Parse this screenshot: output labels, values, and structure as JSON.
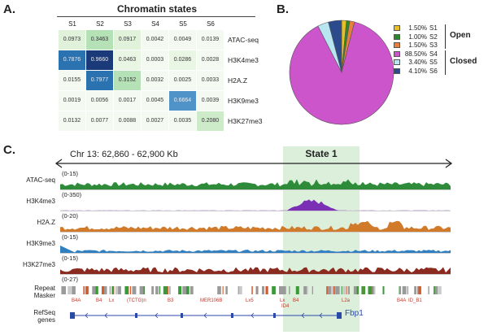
{
  "panel_a": {
    "letter": "A.",
    "title": "Chromatin states",
    "columns": [
      "S1",
      "S2",
      "S3",
      "S4",
      "S5",
      "S6"
    ],
    "rows": [
      {
        "label": "ATAC-seq",
        "values": [
          "0.0973",
          "0.3463",
          "0.0917",
          "0.0042",
          "0.0049",
          "0.0139"
        ]
      },
      {
        "label": "H3K4me3",
        "values": [
          "0.7876",
          "0.9660",
          "0.0463",
          "0.0003",
          "0.0286",
          "0.0028"
        ]
      },
      {
        "label": "H2A.Z",
        "values": [
          "0.0155",
          "0.7977",
          "0.3152",
          "0.0032",
          "0.0025",
          "0.0033"
        ]
      },
      {
        "label": "H3K9me3",
        "values": [
          "0.0019",
          "0.0056",
          "0.0017",
          "0.0045",
          "0.6664",
          "0.0039"
        ]
      },
      {
        "label": "H3K27me3",
        "values": [
          "0.0132",
          "0.0077",
          "0.0088",
          "0.0027",
          "0.0035",
          "0.2080"
        ]
      }
    ]
  },
  "panel_b": {
    "letter": "B.",
    "slices": [
      {
        "pct": "1.50%",
        "state": "S1",
        "value": 1.5,
        "color": "#e8c020"
      },
      {
        "pct": "1.00%",
        "state": "S2",
        "value": 1.0,
        "color": "#2a8a2a"
      },
      {
        "pct": "1.50%",
        "state": "S3",
        "value": 1.5,
        "color": "#e8803c"
      },
      {
        "pct": "88.50%",
        "state": "S4",
        "value": 88.5,
        "color": "#cc55cc"
      },
      {
        "pct": "3.40%",
        "state": "S5",
        "value": 3.4,
        "color": "#b8e6f0"
      },
      {
        "pct": "4.10%",
        "state": "S6",
        "value": 4.1,
        "color": "#2c4b8c"
      }
    ],
    "group_open": "Open",
    "group_closed": "Closed"
  },
  "panel_c": {
    "letter": "C.",
    "locus": "Chr 13: 62,860 - 62,900 Kb",
    "state_label": "State 1",
    "tracks": [
      {
        "name": "ATAC-seq",
        "range": "(0-15)",
        "color": "#2e8b3a"
      },
      {
        "name": "H3K4me3",
        "range": "(0-350)",
        "color": "#7b2fb5"
      },
      {
        "name": "H2A.Z",
        "range": "(0-20)",
        "color": "#d07a2a"
      },
      {
        "name": "H3K9me3",
        "range": "(0-15)",
        "color": "#2f7fc1"
      },
      {
        "name": "H3K27me3",
        "range": "(0-15)",
        "color": "#8b2a1e"
      }
    ],
    "repeat_range": "(0-27)",
    "repeat_label_1": "Repeat",
    "repeat_label_2": "Masker",
    "refseq_label_1": "RefSeq",
    "refseq_label_2": "genes",
    "gene_name": "Fbp1",
    "repeat_names": [
      "B4A",
      "B4",
      "Lx",
      "(TCTG)n",
      "B3",
      "MER106B",
      "Lx5",
      "Lx",
      "B4",
      "ID4",
      "L2a",
      "B4A",
      "ID_B1"
    ]
  }
}
